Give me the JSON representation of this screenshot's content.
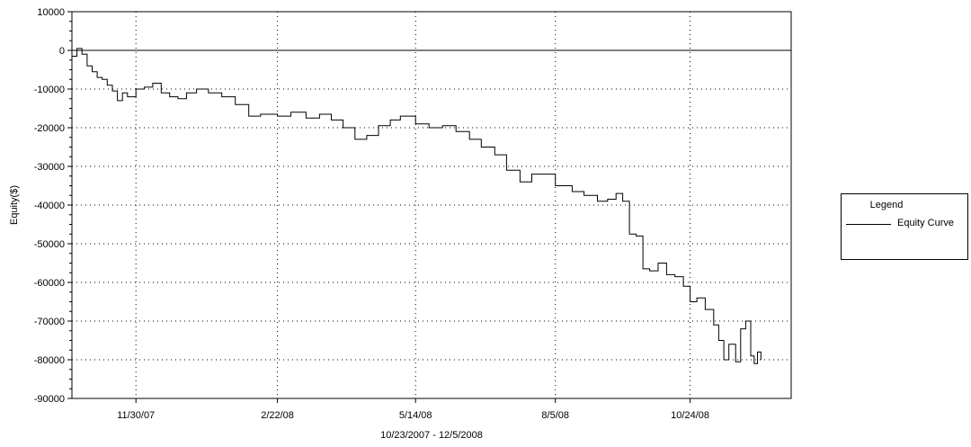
{
  "chart_data": {
    "type": "line",
    "title": "",
    "xlabel": "10/23/2007 - 12/5/2008",
    "ylabel": "Equity($)",
    "ylim": [
      -90000,
      10000
    ],
    "y_ticks": [
      10000,
      0,
      -10000,
      -20000,
      -30000,
      -40000,
      -50000,
      -60000,
      -70000,
      -80000,
      -90000
    ],
    "y_tick_labels": [
      "10000",
      "0",
      "-10000",
      "-20000",
      "-30000",
      "-40000",
      "-50000",
      "-60000",
      "-70000",
      "-80000",
      "-90000"
    ],
    "xlim": [
      "2007-10-23",
      "2008-12-23"
    ],
    "x_ticks": [
      "2007-11-30",
      "2008-02-22",
      "2008-05-14",
      "2008-08-05",
      "2008-10-24"
    ],
    "x_tick_labels": [
      "11/30/07",
      "2/22/08",
      "5/14/08",
      "8/5/08",
      "10/24/08"
    ],
    "grid": true,
    "legend_position": "right",
    "legend": {
      "title": "Legend",
      "entries": [
        "Equity Curve"
      ]
    },
    "series": [
      {
        "name": "Equity Curve",
        "color": "#000000",
        "x": [
          "2007-10-23",
          "2007-10-26",
          "2007-10-29",
          "2007-11-01",
          "2007-11-04",
          "2007-11-07",
          "2007-11-10",
          "2007-11-13",
          "2007-11-16",
          "2007-11-19",
          "2007-11-22",
          "2007-11-25",
          "2007-11-30",
          "2007-12-05",
          "2007-12-10",
          "2007-12-15",
          "2007-12-20",
          "2007-12-25",
          "2007-12-30",
          "2008-01-05",
          "2008-01-12",
          "2008-01-20",
          "2008-01-28",
          "2008-02-05",
          "2008-02-12",
          "2008-02-22",
          "2008-03-01",
          "2008-03-10",
          "2008-03-18",
          "2008-03-25",
          "2008-04-01",
          "2008-04-08",
          "2008-04-15",
          "2008-04-22",
          "2008-04-29",
          "2008-05-05",
          "2008-05-14",
          "2008-05-22",
          "2008-05-30",
          "2008-06-07",
          "2008-06-15",
          "2008-06-22",
          "2008-06-30",
          "2008-07-07",
          "2008-07-15",
          "2008-07-22",
          "2008-08-05",
          "2008-08-15",
          "2008-08-22",
          "2008-08-30",
          "2008-09-05",
          "2008-09-10",
          "2008-09-14",
          "2008-09-18",
          "2008-09-22",
          "2008-09-26",
          "2008-09-30",
          "2008-10-05",
          "2008-10-10",
          "2008-10-15",
          "2008-10-20",
          "2008-10-24",
          "2008-10-28",
          "2008-11-02",
          "2008-11-07",
          "2008-11-10",
          "2008-11-13",
          "2008-11-16",
          "2008-11-20",
          "2008-11-23",
          "2008-11-26",
          "2008-11-29",
          "2008-12-01",
          "2008-12-03",
          "2008-12-05"
        ],
        "y": [
          -1500,
          500,
          -1000,
          -4000,
          -5500,
          -7000,
          -7500,
          -9000,
          -10500,
          -13000,
          -11000,
          -12000,
          -10000,
          -9500,
          -8500,
          -11000,
          -12000,
          -12500,
          -11000,
          -10000,
          -11000,
          -12000,
          -14000,
          -17000,
          -16500,
          -17000,
          -16000,
          -17500,
          -16500,
          -18000,
          -20000,
          -23000,
          -22000,
          -19500,
          -18000,
          -17000,
          -19000,
          -20000,
          -19500,
          -21000,
          -23000,
          -25000,
          -27000,
          -31000,
          -34000,
          -32000,
          -35000,
          -36500,
          -37500,
          -39000,
          -38500,
          -37000,
          -39000,
          -47500,
          -48000,
          -56500,
          -57000,
          -55000,
          -58000,
          -58500,
          -61000,
          -65000,
          -64000,
          -67000,
          -71000,
          -75000,
          -80000,
          -76000,
          -80500,
          -72000,
          -70000,
          -79000,
          -81000,
          -78000,
          -80000
        ]
      }
    ]
  }
}
